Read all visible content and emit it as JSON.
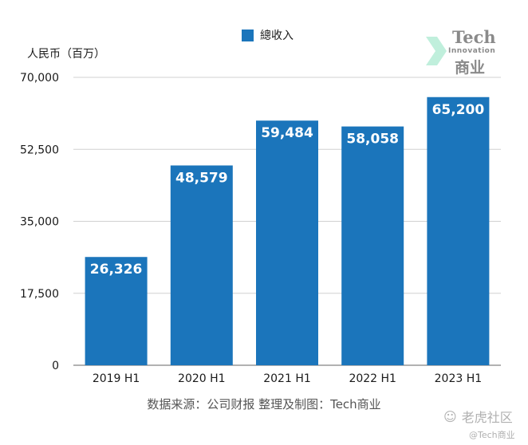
{
  "chart_data": {
    "type": "bar",
    "title": "",
    "legend": [
      "總收入"
    ],
    "ylabel": "人民币（百万）",
    "categories": [
      "2019 H1",
      "2020 H1",
      "2021 H1",
      "2022 H1",
      "2023 H1"
    ],
    "series": [
      {
        "name": "總收入",
        "values": [
          26326,
          48579,
          59484,
          58058,
          65200
        ]
      }
    ],
    "data_labels": [
      "26,326",
      "48,579",
      "59,484",
      "58,058",
      "65,200"
    ],
    "yticks": [
      "0",
      "17,500",
      "35,000",
      "52,500",
      "70,000"
    ],
    "ylim": [
      0,
      70000
    ],
    "grid": true,
    "legend_position": "top-center",
    "bar_color": "#1b75bb"
  },
  "source": "数据来源：公司财报 整理及制图：Tech商业",
  "watermark": {
    "tech": "Tech",
    "innovation": "Innovation",
    "cn": "商业",
    "site": "老虎社区",
    "handle": "@Tech商业"
  }
}
